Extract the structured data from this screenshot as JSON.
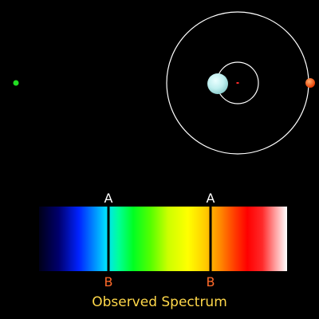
{
  "colors": {
    "background": "#000000",
    "orbit": "#ffffff",
    "observer": "#22dd22",
    "star": "#bfefef",
    "planet": "#ff5a14",
    "center_of_mass": "#ff2a2a",
    "label_top": "#ffffff",
    "label_bottom": "#ff6a2a",
    "caption": "#ffd84a",
    "spectral_line": "#000000"
  },
  "spectrum": {
    "caption": "Observed Spectrum",
    "lines": [
      {
        "top_label": "A",
        "bottom_label": "B"
      },
      {
        "top_label": "A",
        "bottom_label": "B"
      }
    ]
  }
}
